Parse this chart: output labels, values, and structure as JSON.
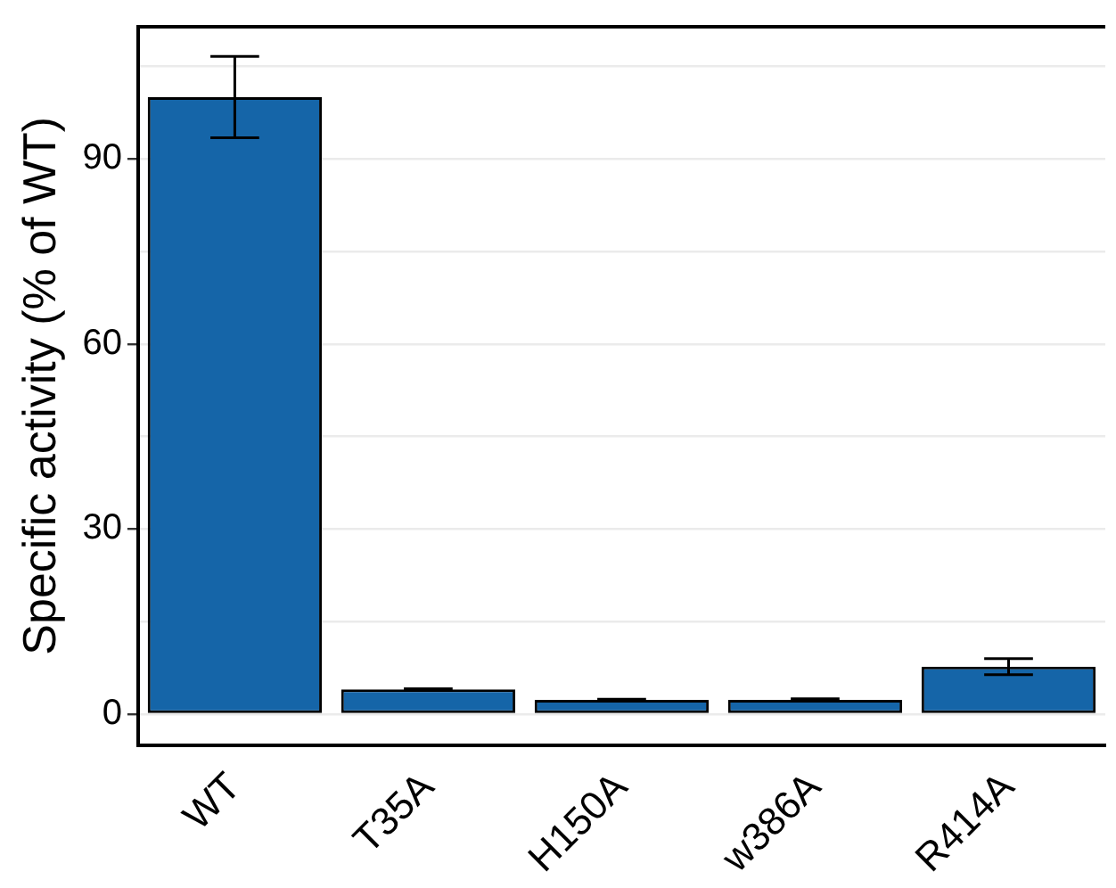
{
  "chart_data": {
    "type": "bar",
    "ylabel": "Specific activity (% of WT)",
    "categories": [
      "WT",
      "T35A",
      "H150A",
      "w386A",
      "R414A"
    ],
    "values": [
      100,
      4.0,
      2.3,
      2.3,
      7.7
    ],
    "errors": [
      6.6,
      0.1,
      0.1,
      0.2,
      1.3
    ],
    "color": "#1565a8",
    "ylim": [
      -5,
      111.4
    ],
    "yticks": [
      0,
      {
        "value": 15,
        "label": null
      },
      30,
      {
        "value": 45,
        "label": null
      },
      60,
      {
        "value": 75,
        "label": null
      },
      90,
      {
        "value": 105,
        "label": null
      }
    ],
    "grid": "y",
    "legend": false
  }
}
